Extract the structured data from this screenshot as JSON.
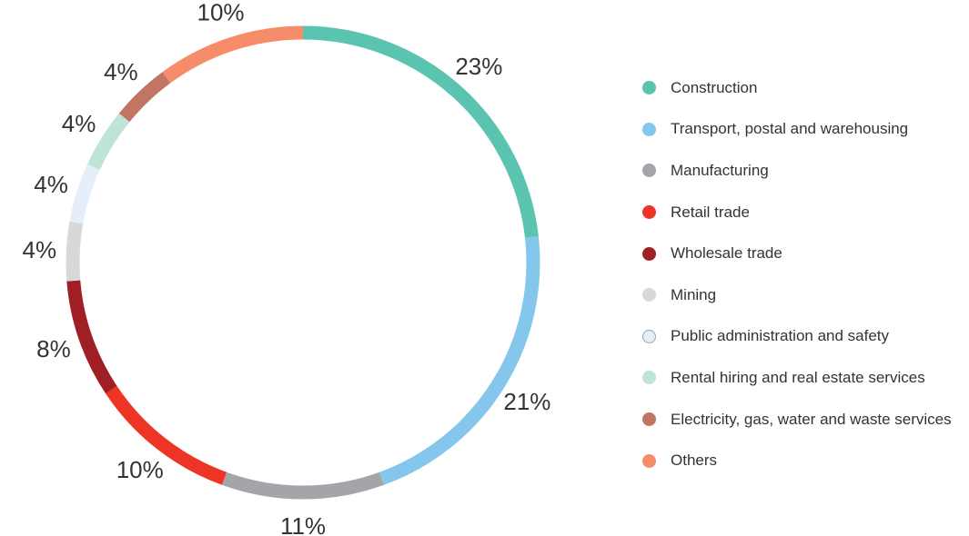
{
  "chart_data": {
    "type": "pie",
    "style": "donut-ring",
    "categories": [
      "Construction",
      "Transport, postal and warehousing",
      "Manufacturing",
      "Retail trade",
      "Wholesale trade",
      "Mining",
      "Public administration and safety",
      "Rental hiring and real estate services",
      "Electricity, gas, water and waste services",
      "Others"
    ],
    "values": [
      23,
      21,
      11,
      10,
      8,
      4,
      4,
      4,
      4,
      10
    ],
    "labels": [
      "23%",
      "21%",
      "11%",
      "10%",
      "8%",
      "4%",
      "4%",
      "4%",
      "4%",
      "10%"
    ],
    "colors": [
      "#5bc4b0",
      "#84c6ec",
      "#a3a5a8",
      "#ee3424",
      "#a01f24",
      "#d8d8d8",
      "#e4eff9",
      "#bfe3d9",
      "#c27563",
      "#f78c6b"
    ],
    "legend_position": "right",
    "start_angle": "12 o'clock",
    "direction": "clockwise"
  }
}
